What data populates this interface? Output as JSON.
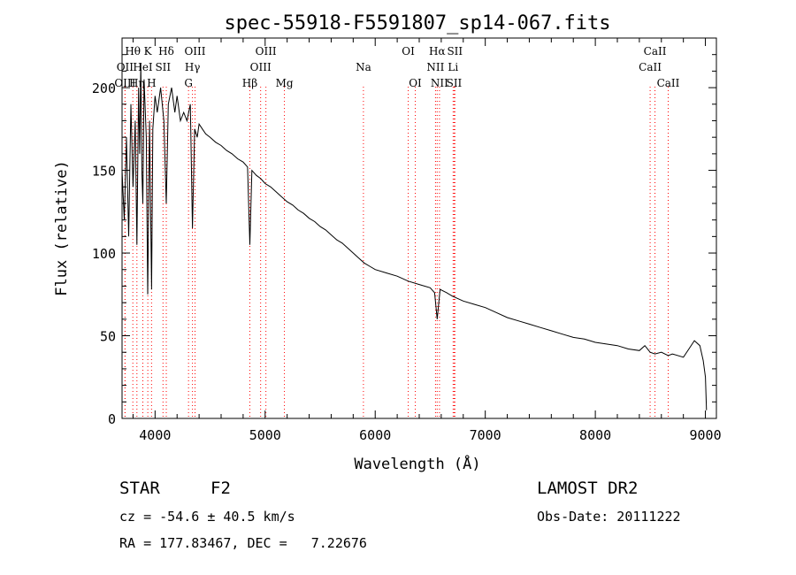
{
  "chart_data": {
    "type": "line",
    "title": "spec-55918-F5591807_sp14-067.fits",
    "xlabel": "Wavelength (Å)",
    "ylabel": "Flux (relative)",
    "xlim": [
      3700,
      9100
    ],
    "ylim": [
      0,
      230
    ],
    "xticks": [
      4000,
      5000,
      6000,
      7000,
      8000,
      9000
    ],
    "yticks": [
      0,
      50,
      100,
      150,
      200
    ],
    "grid": false,
    "legend": "none",
    "line_color": "#000000",
    "marker_color": "#ff0000",
    "series": [
      {
        "x": [
          3700,
          3720,
          3740,
          3760,
          3780,
          3800,
          3820,
          3835,
          3850,
          3860,
          3870,
          3880,
          3889,
          3900,
          3920,
          3933,
          3950,
          3968,
          3980,
          4000,
          4020,
          4050,
          4080,
          4102,
          4120,
          4150,
          4180,
          4200,
          4230,
          4260,
          4290,
          4320,
          4340,
          4360,
          4383,
          4400,
          4430,
          4460,
          4500,
          4550,
          4600,
          4650,
          4700,
          4750,
          4800,
          4840,
          4861,
          4880,
          4920,
          4960,
          5000,
          5050,
          5100,
          5150,
          5200,
          5250,
          5300,
          5350,
          5400,
          5450,
          5500,
          5550,
          5600,
          5650,
          5700,
          5750,
          5800,
          5850,
          5900,
          5950,
          6000,
          6100,
          6200,
          6300,
          6400,
          6500,
          6540,
          6563,
          6590,
          6650,
          6700,
          6800,
          6900,
          7000,
          7100,
          7200,
          7300,
          7400,
          7500,
          7600,
          7700,
          7800,
          7900,
          8000,
          8100,
          8200,
          8300,
          8400,
          8450,
          8498,
          8542,
          8600,
          8662,
          8700,
          8800,
          8850,
          8900,
          8950,
          8980,
          9000,
          9010
        ],
        "y": [
          150,
          120,
          170,
          110,
          190,
          140,
          180,
          105,
          200,
          160,
          215,
          150,
          130,
          205,
          170,
          75,
          180,
          78,
          175,
          195,
          185,
          200,
          180,
          130,
          190,
          200,
          185,
          195,
          180,
          185,
          180,
          190,
          115,
          175,
          170,
          178,
          175,
          172,
          170,
          167,
          165,
          162,
          160,
          157,
          155,
          152,
          105,
          150,
          147,
          145,
          142,
          140,
          137,
          134,
          131,
          129,
          126,
          124,
          121,
          119,
          116,
          114,
          111,
          108,
          106,
          103,
          100,
          97,
          94,
          92,
          90,
          88,
          86,
          83,
          81,
          79,
          76,
          60,
          78,
          76,
          74,
          71,
          69,
          67,
          64,
          61,
          59,
          57,
          55,
          53,
          51,
          49,
          48,
          46,
          45,
          44,
          42,
          41,
          44,
          40,
          39,
          40,
          38,
          39,
          37,
          42,
          47,
          44,
          35,
          25,
          5
        ]
      }
    ],
    "line_ids": [
      {
        "label": "Hθ",
        "wl": 3798,
        "row": 0
      },
      {
        "label": "OII",
        "wl": 3727,
        "row": 1
      },
      {
        "label": "OIII",
        "wl": 3727,
        "row": 2
      },
      {
        "label": "K",
        "wl": 3934,
        "row": 0
      },
      {
        "label": "HeI",
        "wl": 3889,
        "row": 1
      },
      {
        "label": "SII",
        "wl": 4072,
        "row": 1
      },
      {
        "label": "Hη",
        "wl": 3835,
        "row": 2
      },
      {
        "label": "H",
        "wl": 3968,
        "row": 2
      },
      {
        "label": "Hδ",
        "wl": 4102,
        "row": 0
      },
      {
        "label": "OIII",
        "wl": 4363,
        "row": 0
      },
      {
        "label": "Hγ",
        "wl": 4340,
        "row": 1
      },
      {
        "label": "G",
        "wl": 4304,
        "row": 2
      },
      {
        "label": "OIII",
        "wl": 5007,
        "row": 0
      },
      {
        "label": "OIII",
        "wl": 4959,
        "row": 1
      },
      {
        "label": "Hβ",
        "wl": 4861,
        "row": 2
      },
      {
        "label": "Mg",
        "wl": 5175,
        "row": 2
      },
      {
        "label": "Na",
        "wl": 5893,
        "row": 1
      },
      {
        "label": "OI",
        "wl": 6300,
        "row": 0
      },
      {
        "label": "OI",
        "wl": 6364,
        "row": 2
      },
      {
        "label": "Hα",
        "wl": 6563,
        "row": 0
      },
      {
        "label": "SII",
        "wl": 6724,
        "row": 0
      },
      {
        "label": "NII",
        "wl": 6548,
        "row": 1
      },
      {
        "label": "Li",
        "wl": 6708,
        "row": 1
      },
      {
        "label": "NII",
        "wl": 6584,
        "row": 2
      },
      {
        "label": "SII",
        "wl": 6717,
        "row": 2
      },
      {
        "label": "CaII",
        "wl": 8542,
        "row": 0
      },
      {
        "label": "CaII",
        "wl": 8498,
        "row": 1
      },
      {
        "label": "CaII",
        "wl": 8662,
        "row": 2
      }
    ]
  },
  "info": {
    "class_label": "STAR",
    "subclass": "F2",
    "survey": "LAMOST DR2",
    "cz": "cz = -54.6 ± 40.5 km/s",
    "obs_date": "Obs-Date: 20111222",
    "radec": "RA = 177.83467, DEC =   7.22676"
  }
}
